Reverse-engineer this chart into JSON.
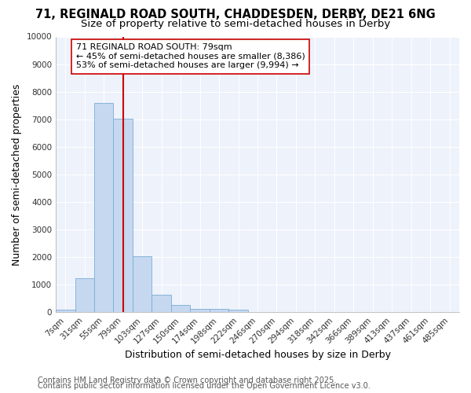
{
  "title1": "71, REGINALD ROAD SOUTH, CHADDESDEN, DERBY, DE21 6NG",
  "title2": "Size of property relative to semi-detached houses in Derby",
  "xlabel": "Distribution of semi-detached houses by size in Derby",
  "ylabel": "Number of semi-detached properties",
  "footer1": "Contains HM Land Registry data © Crown copyright and database right 2025.",
  "footer2": "Contains public sector information licensed under the Open Government Licence v3.0.",
  "bar_labels": [
    "7sqm",
    "31sqm",
    "55sqm",
    "79sqm",
    "103sqm",
    "127sqm",
    "150sqm",
    "174sqm",
    "198sqm",
    "222sqm",
    "246sqm",
    "270sqm",
    "294sqm",
    "318sqm",
    "342sqm",
    "366sqm",
    "389sqm",
    "413sqm",
    "437sqm",
    "461sqm",
    "485sqm"
  ],
  "bar_values": [
    80,
    1220,
    7600,
    7020,
    2020,
    620,
    260,
    120,
    110,
    100,
    0,
    0,
    0,
    0,
    0,
    0,
    0,
    0,
    0,
    0,
    0
  ],
  "bar_color": "#c5d8f0",
  "bar_edgecolor": "#7aaed6",
  "red_line_color": "#cc0000",
  "red_line_index": 3,
  "annotation_line1": "71 REGINALD ROAD SOUTH: 79sqm",
  "annotation_line2": "← 45% of semi-detached houses are smaller (8,386)",
  "annotation_line3": "53% of semi-detached houses are larger (9,994) →",
  "ylim": [
    0,
    10000
  ],
  "yticks": [
    0,
    1000,
    2000,
    3000,
    4000,
    5000,
    6000,
    7000,
    8000,
    9000,
    10000
  ],
  "bg_color": "#ffffff",
  "plot_bg_color": "#eef2fb",
  "grid_color": "#ffffff",
  "title_fontsize": 10.5,
  "subtitle_fontsize": 9.5,
  "anno_fontsize": 8,
  "footer_fontsize": 7,
  "axis_label_fontsize": 9,
  "tick_fontsize": 7.5
}
